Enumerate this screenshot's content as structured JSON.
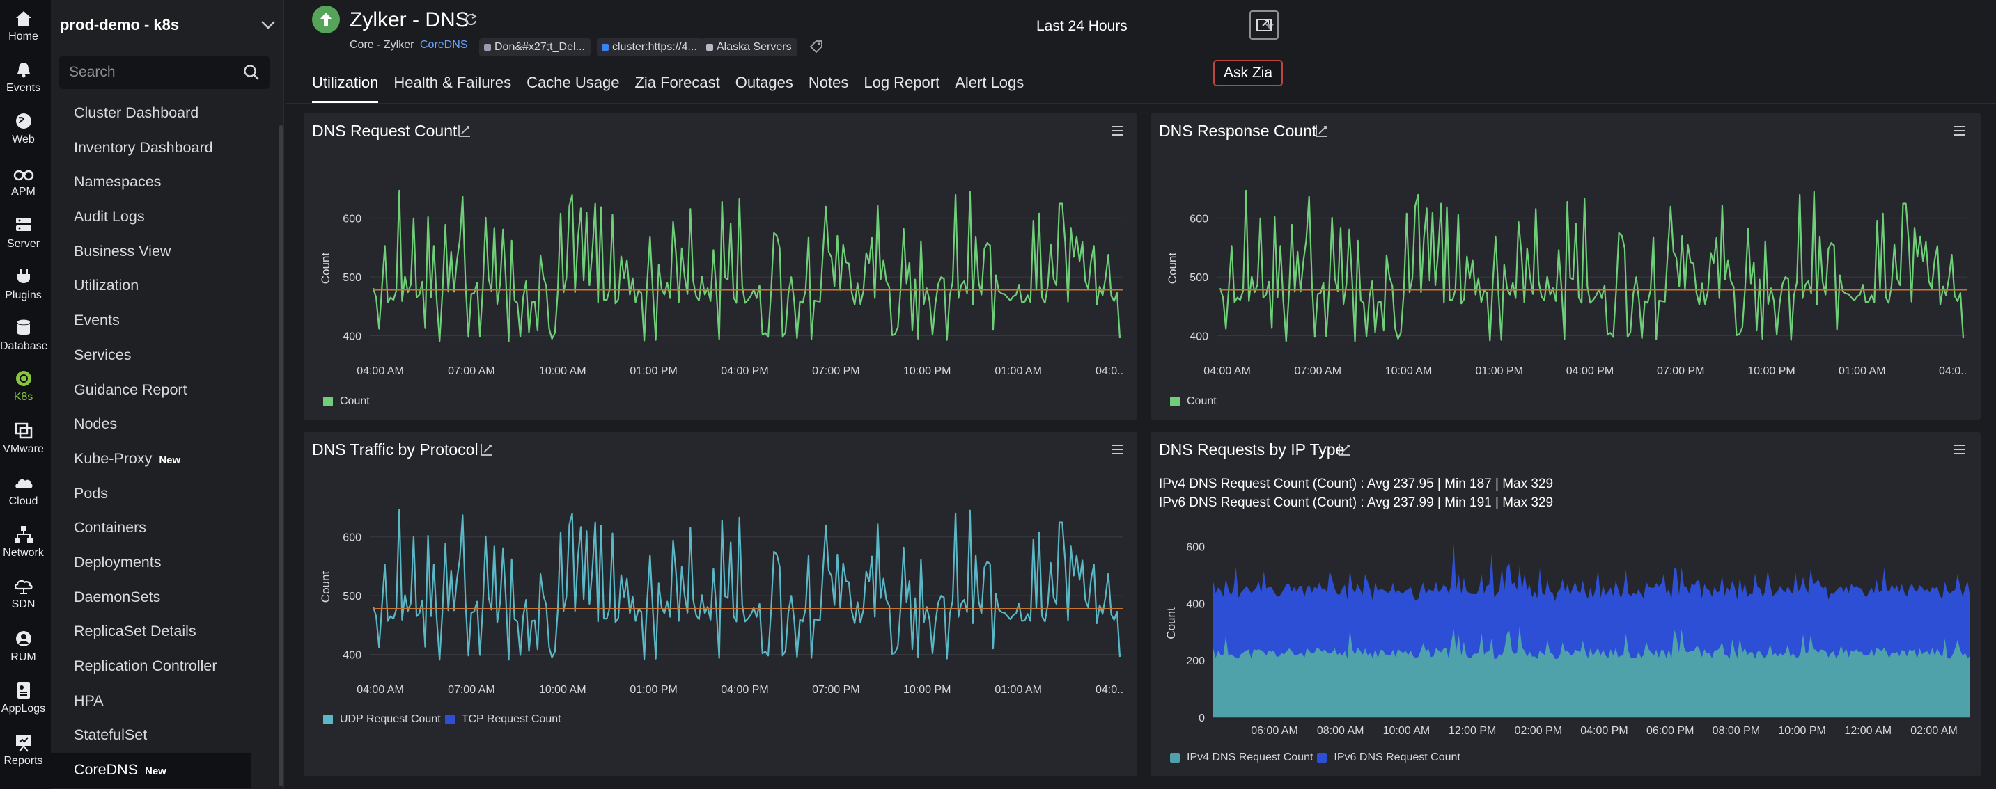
{
  "rail": [
    {
      "label": "Home",
      "icon": "home-icon"
    },
    {
      "label": "Events",
      "icon": "bell-icon"
    },
    {
      "label": "Web",
      "icon": "globe-icon"
    },
    {
      "label": "APM",
      "icon": "binoculars-icon"
    },
    {
      "label": "Server",
      "icon": "server-icon"
    },
    {
      "label": "Plugins",
      "icon": "plug-icon"
    },
    {
      "label": "Database",
      "icon": "database-icon"
    },
    {
      "label": "K8s",
      "icon": "kubernetes-icon"
    },
    {
      "label": "VMware",
      "icon": "vmware-icon"
    },
    {
      "label": "Cloud",
      "icon": "cloud-icon"
    },
    {
      "label": "Network",
      "icon": "network-icon"
    },
    {
      "label": "SDN",
      "icon": "sdn-icon"
    },
    {
      "label": "RUM",
      "icon": "rum-icon"
    },
    {
      "label": "AppLogs",
      "icon": "applogs-icon"
    },
    {
      "label": "Reports",
      "icon": "reports-icon"
    }
  ],
  "sidebar": {
    "cluster": "prod-demo - k8s",
    "search_placeholder": "Search",
    "items": [
      {
        "label": "Cluster Dashboard",
        "badge": ""
      },
      {
        "label": "Inventory Dashboard",
        "badge": ""
      },
      {
        "label": "Namespaces",
        "badge": ""
      },
      {
        "label": "Audit Logs",
        "badge": ""
      },
      {
        "label": "Business View",
        "badge": ""
      },
      {
        "label": "Utilization",
        "badge": ""
      },
      {
        "label": "Events",
        "badge": ""
      },
      {
        "label": "Services",
        "badge": ""
      },
      {
        "label": "Guidance Report",
        "badge": ""
      },
      {
        "label": "Nodes",
        "badge": ""
      },
      {
        "label": "Kube-Proxy",
        "badge": "New"
      },
      {
        "label": "Pods",
        "badge": ""
      },
      {
        "label": "Containers",
        "badge": ""
      },
      {
        "label": "Deployments",
        "badge": ""
      },
      {
        "label": "DaemonSets",
        "badge": ""
      },
      {
        "label": "ReplicaSet Details",
        "badge": ""
      },
      {
        "label": "Replication Controller",
        "badge": ""
      },
      {
        "label": "HPA",
        "badge": ""
      },
      {
        "label": "StatefulSet",
        "badge": ""
      },
      {
        "label": "CoreDNS",
        "badge": "New"
      }
    ]
  },
  "header": {
    "title": "Zylker - DNS",
    "crumb": "Core - Zylker",
    "crumb_link": "CoreDNS",
    "tags": [
      {
        "label": "Don&#x27;t_Del...",
        "color": "#9a9cb0"
      },
      {
        "label": "cluster:https://4...",
        "color": "#3b82f6"
      },
      {
        "label": "Alaska Servers",
        "color": "#b7b9c4"
      }
    ],
    "time_range": "Last 24 Hours",
    "ask_zia": "Ask Zia",
    "tabs": [
      "Utilization",
      "Health & Failures",
      "Cache Usage",
      "Zia Forecast",
      "Outages",
      "Notes",
      "Log Report",
      "Alert Logs"
    ]
  },
  "colors": {
    "green": "#6fcf79",
    "teal": "#5ab8c6",
    "blue": "#2c4fd6",
    "baseline": "#c9742f",
    "ipv4": "#4fa1aa"
  },
  "panels": {
    "p1": {
      "title": "DNS Request Count"
    },
    "p2": {
      "title": "DNS Response Count"
    },
    "p3": {
      "title": "DNS Traffic by Protocol"
    },
    "p4": {
      "title": "DNS Requests by IP Type",
      "stats": [
        "IPv4 DNS Request Count (Count) :  Avg 237.95   |  Min 187   |  Max 329",
        "IPv6 DNS Request Count (Count) :  Avg 237.99   |  Min 191   |  Max 329"
      ]
    }
  },
  "chart_data": [
    {
      "type": "line",
      "title": "DNS Request Count",
      "ylabel": "Count",
      "ylim": [
        370,
        660
      ],
      "yticks": [
        400,
        500,
        600
      ],
      "xticks": [
        "04:00 AM",
        "07:00 AM",
        "10:00 AM",
        "01:00 PM",
        "04:00 PM",
        "07:00 PM",
        "10:00 PM",
        "01:00 AM",
        "04:0.."
      ],
      "baseline": 478,
      "series": [
        {
          "name": "Count",
          "seed": 7
        }
      ],
      "legend": [
        "Count"
      ]
    },
    {
      "type": "line",
      "title": "DNS Response Count",
      "ylabel": "Count",
      "ylim": [
        370,
        660
      ],
      "yticks": [
        400,
        500,
        600
      ],
      "xticks": [
        "04:00 AM",
        "07:00 AM",
        "10:00 AM",
        "01:00 PM",
        "04:00 PM",
        "07:00 PM",
        "10:00 PM",
        "01:00 AM",
        "04:0.."
      ],
      "baseline": 478,
      "series": [
        {
          "name": "Count",
          "seed": 7
        }
      ],
      "legend": [
        "Count"
      ]
    },
    {
      "type": "line",
      "title": "DNS Traffic by Protocol",
      "ylabel": "Count",
      "ylim": [
        370,
        660
      ],
      "yticks": [
        400,
        500,
        600
      ],
      "xticks": [
        "04:00 AM",
        "07:00 AM",
        "10:00 AM",
        "01:00 PM",
        "04:00 PM",
        "07:00 PM",
        "10:00 PM",
        "01:00 AM",
        "04:0.."
      ],
      "baseline": 478,
      "series": [
        {
          "name": "UDP Request Count",
          "seed": 7
        },
        {
          "name": "TCP Request Count",
          "seed": 0
        }
      ],
      "legend": [
        "UDP Request Count",
        "TCP Request Count"
      ]
    },
    {
      "type": "area",
      "title": "DNS Requests by IP Type",
      "ylabel": "Count",
      "ylim": [
        0,
        660
      ],
      "yticks": [
        0,
        200,
        400,
        600
      ],
      "xticks": [
        "06:00 AM",
        "08:00 AM",
        "10:00 AM",
        "12:00 PM",
        "02:00 PM",
        "04:00 PM",
        "06:00 PM",
        "08:00 PM",
        "10:00 PM",
        "12:00 AM",
        "02:00 AM"
      ],
      "series": [
        {
          "name": "IPv4 DNS Request Count",
          "avg": 237.95,
          "min": 187,
          "max": 329
        },
        {
          "name": "IPv6 DNS Request Count",
          "avg": 237.99,
          "min": 191,
          "max": 329
        }
      ],
      "legend": [
        "IPv4 DNS Request Count",
        "IPv6 DNS Request Count"
      ]
    }
  ]
}
